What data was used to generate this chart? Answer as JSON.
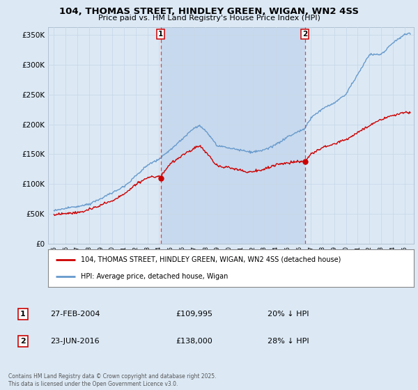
{
  "title": "104, THOMAS STREET, HINDLEY GREEN, WIGAN, WN2 4SS",
  "subtitle": "Price paid vs. HM Land Registry's House Price Index (HPI)",
  "background_color": "#dce9f5",
  "plot_bg_color": "#dce9f5",
  "shade_color": "#c5d8ee",
  "legend_label_red": "104, THOMAS STREET, HINDLEY GREEN, WIGAN, WN2 4SS (detached house)",
  "legend_label_blue": "HPI: Average price, detached house, Wigan",
  "transaction1_date": "27-FEB-2004",
  "transaction1_price": "£109,995",
  "transaction1_hpi": "20% ↓ HPI",
  "transaction2_date": "23-JUN-2016",
  "transaction2_price": "£138,000",
  "transaction2_hpi": "28% ↓ HPI",
  "copyright": "Contains HM Land Registry data © Crown copyright and database right 2025.\nThis data is licensed under the Open Government Licence v3.0.",
  "vline1_x": 2004.15,
  "vline2_x": 2016.47,
  "marker1_red_y": 109995,
  "marker2_red_y": 138000,
  "ylim": [
    0,
    362500
  ],
  "xlim": [
    1994.5,
    2025.8
  ],
  "red_color": "#cc0000",
  "blue_color": "#6699cc",
  "grid_color": "#c8d8e8",
  "vline_color": "#dd4444"
}
